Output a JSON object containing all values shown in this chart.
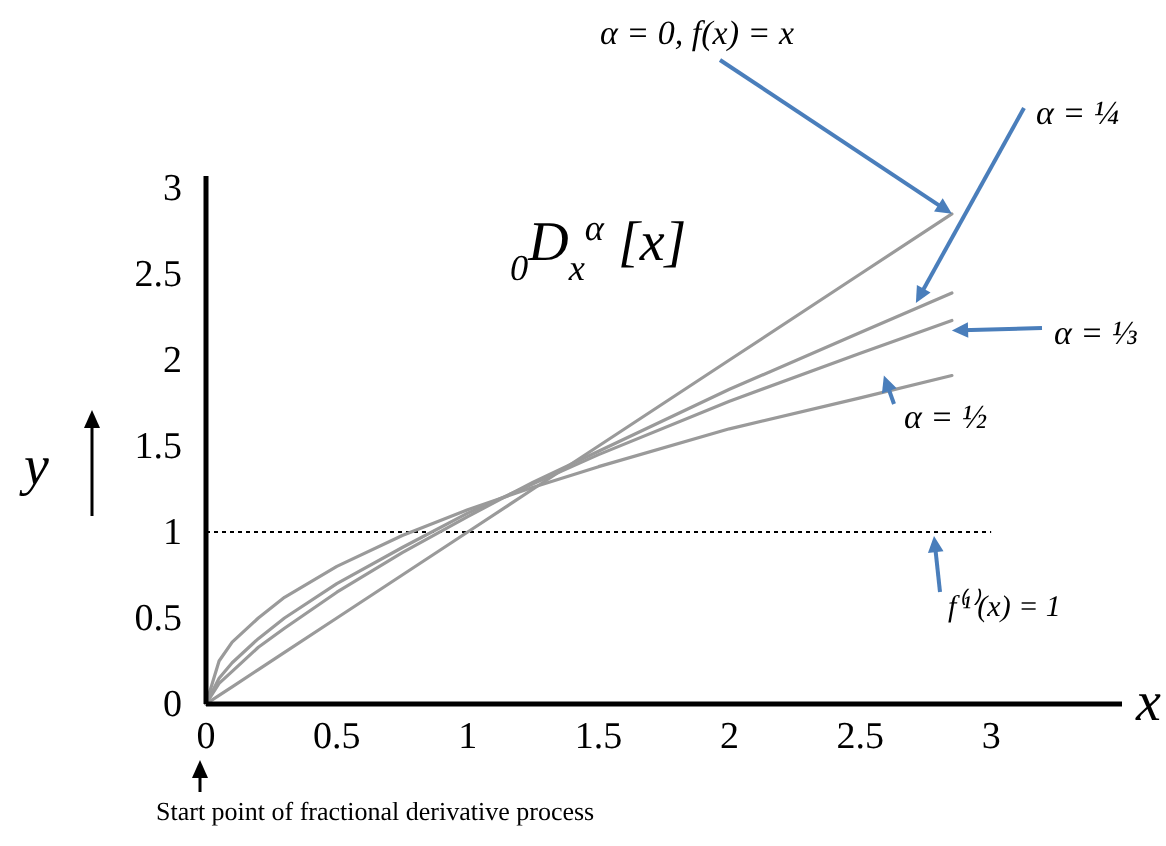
{
  "chart_data": {
    "type": "line",
    "title": "$_{0}$D$_{x}$$^{α}$ [x]",
    "xlabel": "x",
    "ylabel": "y",
    "x": [
      0,
      0.05,
      0.1,
      0.2,
      0.3,
      0.5,
      0.75,
      1,
      1.25,
      1.5,
      2,
      2.5,
      2.85
    ],
    "series": [
      {
        "name": "α = 0,  f(x) = x",
        "color": "#9a9a9a",
        "values": [
          0,
          0.05,
          0.1,
          0.2,
          0.3,
          0.5,
          0.75,
          1,
          1.25,
          1.5,
          2,
          2.5,
          2.85
        ]
      },
      {
        "name": "α = ¼",
        "color": "#9a9a9a",
        "values": [
          0,
          0.12,
          0.19,
          0.33,
          0.44,
          0.65,
          0.88,
          1.09,
          1.29,
          1.47,
          1.83,
          2.16,
          2.39
        ]
      },
      {
        "name": "α = ⅓",
        "color": "#9a9a9a",
        "values": [
          0,
          0.15,
          0.24,
          0.38,
          0.5,
          0.7,
          0.91,
          1.11,
          1.28,
          1.45,
          1.76,
          2.04,
          2.23
        ]
      },
      {
        "name": "α = ½",
        "color": "#9a9a9a",
        "values": [
          0,
          0.25,
          0.36,
          0.5,
          0.62,
          0.8,
          0.98,
          1.13,
          1.26,
          1.38,
          1.6,
          1.78,
          1.91
        ]
      }
    ],
    "xlim": [
      0,
      3.5
    ],
    "ylim": [
      0,
      3.07
    ],
    "xticks": [
      0,
      0.5,
      1,
      1.5,
      2,
      2.5,
      3
    ],
    "yticks": [
      0,
      0.5,
      1,
      1.5,
      2,
      2.5,
      3
    ],
    "ref_lines": [
      {
        "axis": "y",
        "value": 1,
        "label": "f⁽¹⁾(x) = 1",
        "color": "#000000",
        "line_style": "dotted"
      }
    ],
    "annotations": [
      "Start point of fractional derivative process"
    ],
    "grid": false,
    "marker": "none",
    "line_style": "solid"
  }
}
